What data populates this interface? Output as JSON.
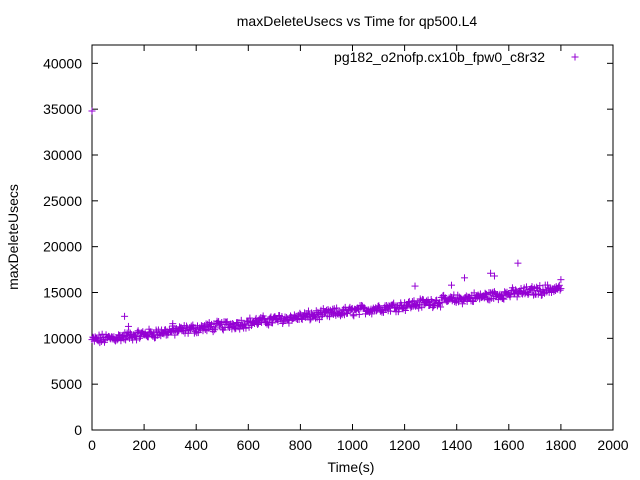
{
  "chart_data": {
    "type": "scatter",
    "title": "maxDeleteUsecs vs Time for qp500.L4",
    "xlabel": "Time(s)",
    "ylabel": "maxDeleteUsecs",
    "xlim": [
      0,
      2000
    ],
    "ylim": [
      0,
      42000
    ],
    "xticks": [
      "0",
      "200",
      "400",
      "600",
      "800",
      "1000",
      "1200",
      "1400",
      "1600",
      "1800",
      "2000"
    ],
    "yticks": [
      "0",
      "5000",
      "10000",
      "15000",
      "20000",
      "25000",
      "30000",
      "35000",
      "40000"
    ],
    "grid": false,
    "legend_position": "top-right",
    "series": [
      {
        "name": "pg182_o2nofp.cx10b_fpw0_c8r32",
        "color": "#9400d3",
        "marker": "+",
        "trend": {
          "start": [
            0,
            9800
          ],
          "end": [
            1800,
            15500
          ]
        },
        "outliers": [
          [
            0,
            34800
          ],
          [
            125,
            12400
          ],
          [
            140,
            11300
          ],
          [
            310,
            11600
          ],
          [
            1240,
            15700
          ],
          [
            1380,
            15800
          ],
          [
            1430,
            16600
          ],
          [
            1530,
            17100
          ],
          [
            1545,
            16800
          ],
          [
            1635,
            18200
          ],
          [
            1800,
            16400
          ]
        ]
      }
    ]
  }
}
